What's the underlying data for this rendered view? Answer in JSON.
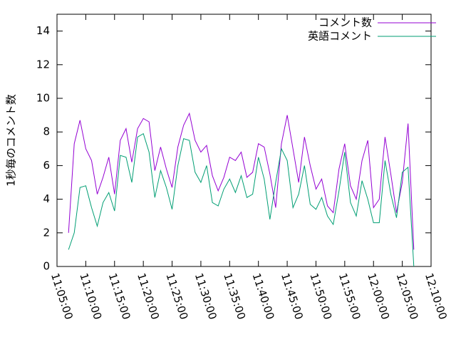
{
  "chart_data": {
    "type": "line",
    "y_label": "1秒毎のコメント数",
    "x": [
      "11:07:00",
      "11:08:00",
      "11:09:00",
      "11:10:00",
      "11:11:00",
      "11:12:00",
      "11:13:00",
      "11:14:00",
      "11:15:00",
      "11:16:00",
      "11:17:00",
      "11:18:00",
      "11:19:00",
      "11:20:00",
      "11:21:00",
      "11:22:00",
      "11:23:00",
      "11:24:00",
      "11:25:00",
      "11:26:00",
      "11:27:00",
      "11:28:00",
      "11:29:00",
      "11:30:00",
      "11:31:00",
      "11:32:00",
      "11:33:00",
      "11:34:00",
      "11:35:00",
      "11:36:00",
      "11:37:00",
      "11:38:00",
      "11:39:00",
      "11:40:00",
      "11:41:00",
      "11:42:00",
      "11:43:00",
      "11:44:00",
      "11:45:00",
      "11:46:00",
      "11:47:00",
      "11:48:00",
      "11:49:00",
      "11:50:00",
      "11:51:00",
      "11:52:00",
      "11:53:00",
      "11:54:00",
      "11:55:00",
      "11:56:00",
      "11:57:00",
      "11:58:00",
      "11:59:00",
      "12:00:00",
      "12:01:00",
      "12:02:00",
      "12:03:00",
      "12:04:00",
      "12:05:00",
      "12:06:00",
      "12:07:00"
    ],
    "series": [
      {
        "name": "コメント数",
        "color": "#9400d3",
        "values": [
          2.0,
          7.3,
          8.7,
          7.0,
          6.3,
          4.3,
          5.3,
          6.5,
          4.3,
          7.5,
          8.2,
          6.2,
          8.2,
          8.8,
          8.6,
          5.7,
          7.1,
          5.8,
          4.7,
          7.1,
          8.4,
          9.1,
          7.5,
          6.8,
          7.2,
          5.4,
          4.5,
          5.3,
          6.5,
          6.3,
          6.8,
          5.3,
          5.6,
          7.3,
          7.1,
          5.5,
          3.5,
          7.3,
          9.0,
          7.0,
          5.0,
          7.7,
          6.0,
          4.6,
          5.2,
          3.6,
          3.2,
          5.8,
          7.3,
          4.8,
          4.0,
          6.3,
          7.5,
          3.5,
          4.0,
          7.7,
          5.5,
          3.2,
          5.0,
          8.5,
          1.0
        ]
      },
      {
        "name": "英語コメント",
        "color": "#009e73",
        "values": [
          1.0,
          2.0,
          4.7,
          4.8,
          3.5,
          2.4,
          3.8,
          4.4,
          3.3,
          6.6,
          6.5,
          5.0,
          7.7,
          7.9,
          6.8,
          4.1,
          5.7,
          4.7,
          3.4,
          6.0,
          7.6,
          7.5,
          5.6,
          5.0,
          6.0,
          3.8,
          3.6,
          4.6,
          5.2,
          4.4,
          5.4,
          4.1,
          4.3,
          6.5,
          5.2,
          2.8,
          5.0,
          7.0,
          6.3,
          3.5,
          4.3,
          6.0,
          3.7,
          3.4,
          4.1,
          3.0,
          2.5,
          4.5,
          6.8,
          3.8,
          3.0,
          5.1,
          4.0,
          2.6,
          2.6,
          6.3,
          4.3,
          2.9,
          5.6,
          5.9,
          0
        ]
      }
    ],
    "xlim": [
      "11:05:00",
      "12:10:00"
    ],
    "xticks": [
      "11:05:00",
      "11:10:00",
      "11:15:00",
      "11:20:00",
      "11:25:00",
      "11:30:00",
      "11:35:00",
      "11:40:00",
      "11:45:00",
      "11:50:00",
      "11:55:00",
      "12:00:00",
      "12:05:00",
      "12:10:00"
    ],
    "ylim": [
      0,
      15
    ],
    "yticks": [
      0,
      2,
      4,
      6,
      8,
      10,
      12,
      14
    ],
    "legend": "top-right"
  }
}
